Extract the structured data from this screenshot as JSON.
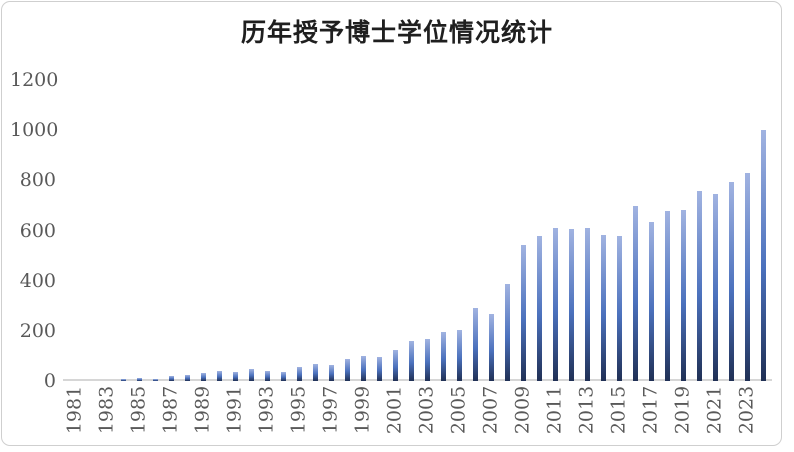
{
  "page": {
    "background_color": "#ffffff",
    "frame_border_color": "#cfcfcf"
  },
  "chart_data": {
    "type": "bar",
    "title": "历年授予博士学位情况统计",
    "xlabel": "",
    "ylabel": "",
    "categories": [
      "1981",
      "1982",
      "1983",
      "1984",
      "1985",
      "1986",
      "1987",
      "1988",
      "1989",
      "1990",
      "1991",
      "1992",
      "1993",
      "1994",
      "1995",
      "1996",
      "1997",
      "1998",
      "1999",
      "2000",
      "2001",
      "2002",
      "2003",
      "2004",
      "2005",
      "2006",
      "2007",
      "2008",
      "2009",
      "2010",
      "2011",
      "2012",
      "2013",
      "2014",
      "2015",
      "2016",
      "2017",
      "2018",
      "2019",
      "2020",
      "2021",
      "2022",
      "2023",
      "2024"
    ],
    "values": [
      0,
      0,
      0,
      8,
      12,
      8,
      20,
      25,
      33,
      41,
      37,
      47,
      40,
      36,
      56,
      67,
      62,
      87,
      101,
      95,
      122,
      160,
      167,
      194,
      203,
      292,
      266,
      385,
      541,
      578,
      612,
      608,
      612,
      583,
      580,
      696,
      632,
      677,
      681,
      758,
      744,
      793,
      831,
      1000
    ],
    "ylim": [
      0,
      1200
    ],
    "yticks": [
      0,
      200,
      400,
      600,
      800,
      1000,
      1200
    ],
    "xtick_label_interval": 2,
    "xticks_shown": [
      "1981",
      "1983",
      "1985",
      "1987",
      "1989",
      "1991",
      "1993",
      "1995",
      "1997",
      "1999",
      "2001",
      "2003",
      "2005",
      "2007",
      "2009",
      "2011",
      "2013",
      "2015",
      "2017",
      "2019",
      "2021",
      "2023"
    ],
    "xtick_rotation_degrees": -90,
    "grid": false,
    "legend": false,
    "colors": {
      "bar_gradient_top": "#a1b3e1",
      "bar_gradient_mid": "#4b71bd",
      "bar_gradient_bottom": "#203055",
      "axis_line": "#d6d6d6",
      "tick_label": "#595959",
      "title_color": "#1f1f1f"
    }
  }
}
